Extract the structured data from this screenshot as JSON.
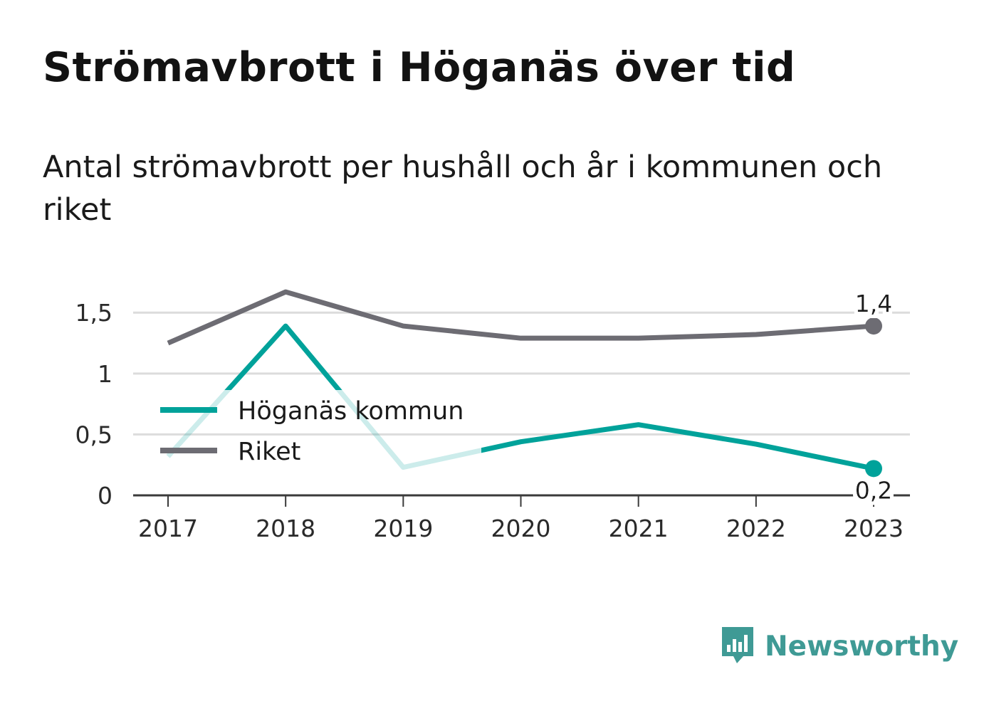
{
  "title": "Strömavbrott i Höganäs över tid",
  "subtitle": "Antal strömavbrott per hushåll och år i kommunen och riket",
  "brand": {
    "name": "Newsworthy",
    "icon": "newsworthy-logo-icon",
    "color": "#3f9a95"
  },
  "chart_data": {
    "type": "line",
    "categories": [
      "2017",
      "2018",
      "2019",
      "2020",
      "2021",
      "2022",
      "2023"
    ],
    "ylim": [
      0,
      1.7
    ],
    "yticks": [
      0,
      0.5,
      1,
      1.5
    ],
    "ytick_labels": [
      "0",
      "0,5",
      "1",
      "1,5"
    ],
    "grid": true,
    "legend_position": "left-middle",
    "series": [
      {
        "name": "Höganäs kommun",
        "color": "#00a29a",
        "values": [
          0.32,
          1.39,
          0.23,
          0.44,
          0.58,
          0.42,
          0.22
        ],
        "end_label": "0,2"
      },
      {
        "name": "Riket",
        "color": "#6d6c73",
        "values": [
          1.25,
          1.67,
          1.39,
          1.29,
          1.29,
          1.32,
          1.39
        ],
        "end_label": "1,4"
      }
    ]
  }
}
